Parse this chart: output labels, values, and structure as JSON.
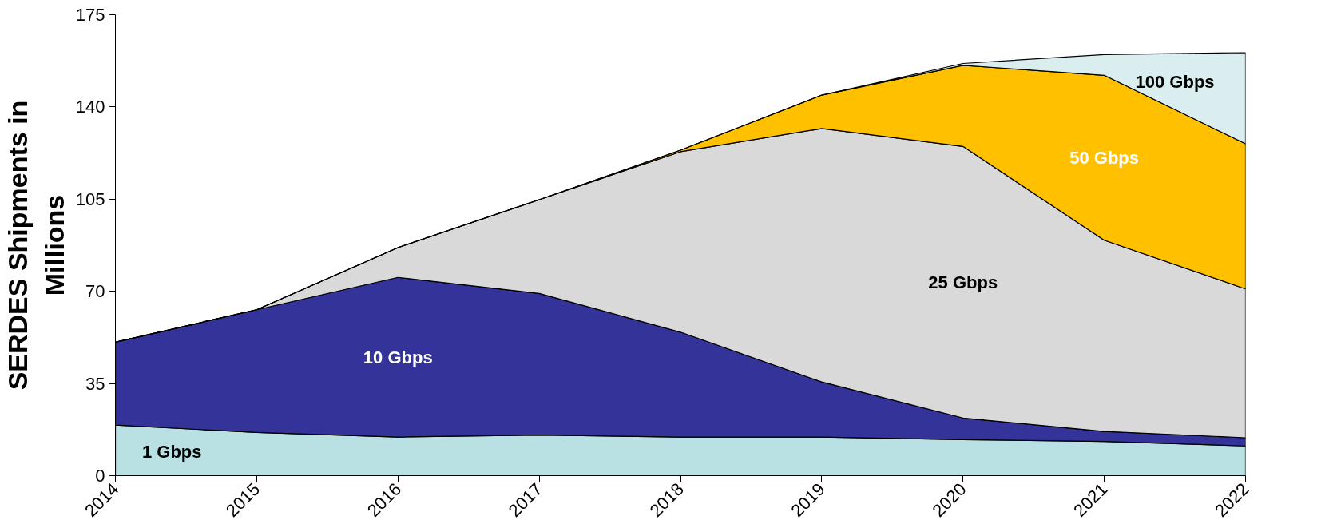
{
  "chart_data": {
    "type": "area",
    "stacked": true,
    "ylabel": "SERDES Shipments in Millions",
    "x": [
      2014,
      2015,
      2016,
      2017,
      2018,
      2019,
      2020,
      2021,
      2022
    ],
    "series": [
      {
        "name": "1 Gbps",
        "color": "#b9e0e3",
        "values": [
          19.2,
          16.4,
          14.7,
          15.4,
          14.7,
          14.7,
          13.7,
          13.0,
          11.3
        ]
      },
      {
        "name": "10 Gbps",
        "color": "#333399",
        "values": [
          31.5,
          46.6,
          60.6,
          53.8,
          39.8,
          20.9,
          8.2,
          3.8,
          3.1
        ]
      },
      {
        "name": "25 Gbps",
        "color": "#d9d9d9",
        "values": [
          0,
          0,
          11.3,
          35.6,
          68.5,
          96.2,
          103.1,
          72.6,
          56.5
        ]
      },
      {
        "name": "50 Gbps",
        "color": "#ffc000",
        "values": [
          0,
          0,
          0,
          0,
          0.6,
          12.7,
          30.8,
          62.6,
          55.1
        ]
      },
      {
        "name": "100 Gbps",
        "color": "#daeef0",
        "values": [
          0,
          0,
          0,
          0,
          0,
          0,
          0.7,
          7.9,
          34.6
        ]
      }
    ],
    "xlim": [
      2014,
      2022
    ],
    "ylim": [
      0,
      175
    ],
    "xticks": [
      2014,
      2015,
      2016,
      2017,
      2018,
      2019,
      2020,
      2021,
      2022
    ],
    "yticks": [
      0,
      35,
      70,
      105,
      140,
      175
    ],
    "grid": false,
    "legend": false
  }
}
